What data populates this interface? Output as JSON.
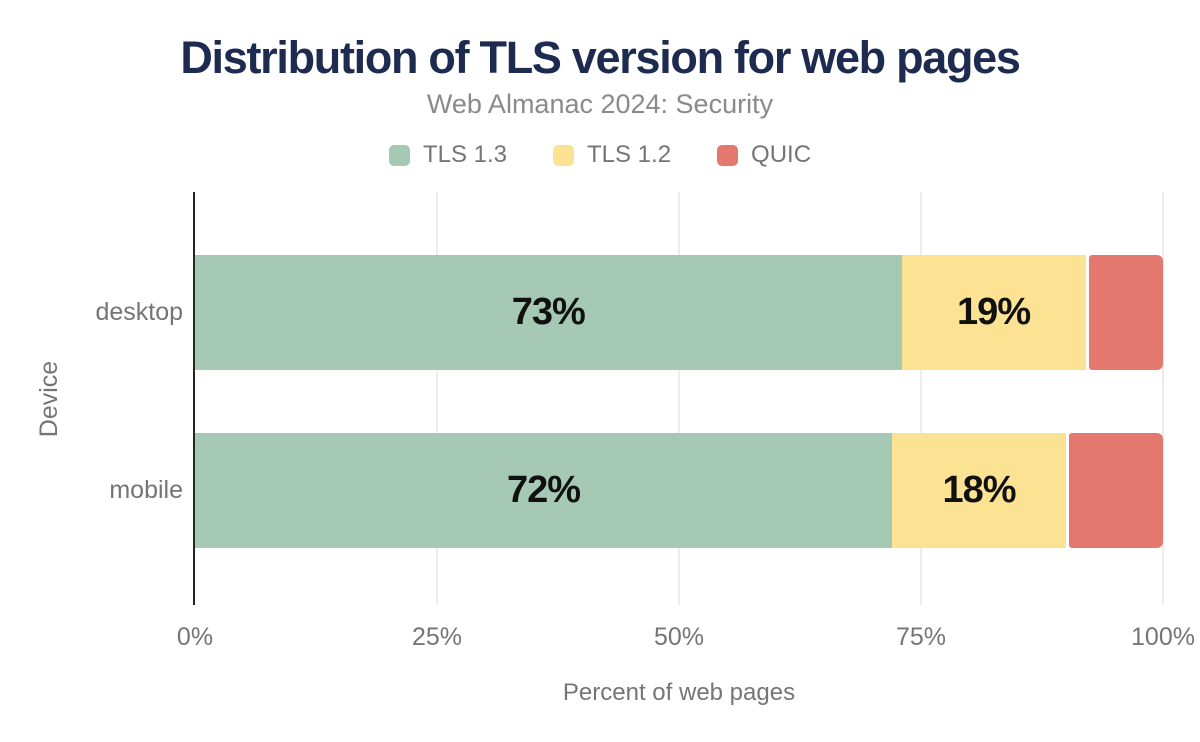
{
  "chart_data": {
    "type": "bar",
    "orientation": "horizontal",
    "stacked": true,
    "title": "Distribution of TLS version for web pages",
    "subtitle": "Web Almanac 2024: Security",
    "xlabel": "Percent of web pages",
    "ylabel": "Device",
    "categories": [
      "desktop",
      "mobile"
    ],
    "series": [
      {
        "name": "TLS 1.3",
        "color": "#a5c9b5",
        "values": [
          73,
          72
        ],
        "data_labels": [
          "73%",
          "72%"
        ]
      },
      {
        "name": "TLS 1.2",
        "color": "#fce394",
        "values": [
          19,
          18
        ],
        "data_labels": [
          "19%",
          "18%"
        ]
      },
      {
        "name": "QUIC",
        "color": "#e5786e",
        "values": [
          8,
          10
        ],
        "data_labels": [
          "",
          ""
        ]
      }
    ],
    "xlim": [
      0,
      100
    ],
    "xticks": [
      {
        "value": 0,
        "label": "0%"
      },
      {
        "value": 25,
        "label": "25%"
      },
      {
        "value": 50,
        "label": "50%"
      },
      {
        "value": 75,
        "label": "75%"
      },
      {
        "value": 100,
        "label": "100%"
      }
    ],
    "grid": true,
    "legend_position": "top"
  },
  "colors": {
    "background": "#ffffff",
    "title": "#1e2b50",
    "subtitle": "#8a8a8a",
    "text_muted": "#757575",
    "axis_line": "#242424",
    "gridline": "#ededed",
    "bar_label": "#111111"
  }
}
